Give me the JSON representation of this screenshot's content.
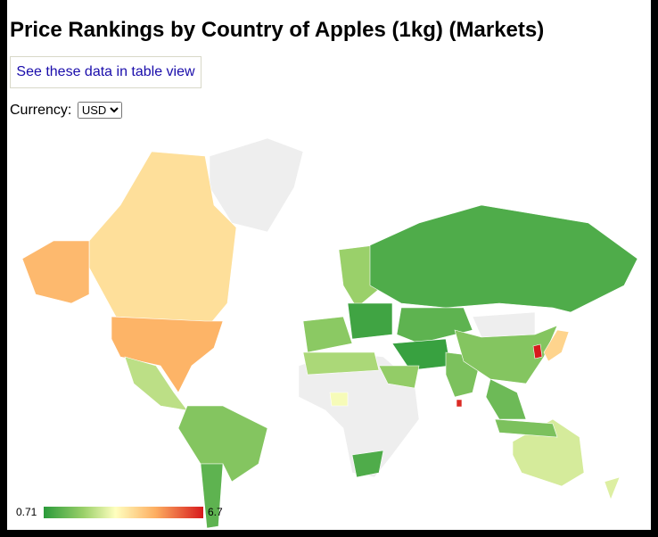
{
  "header": {
    "title": "Price Rankings by Country of Apples (1kg) (Markets)"
  },
  "table_link": "See these data in table view",
  "currency": {
    "label": "Currency:",
    "selected": "USD"
  },
  "map": {
    "legend": {
      "min": 0.71,
      "max": 6.7
    },
    "values": [
      4.0,
      4.7,
      4.8,
      2.6,
      1.9,
      1.4,
      3.3,
      1.2,
      2.4,
      2.0,
      2.2,
      1.0,
      1.2,
      1.4,
      0.9,
      2.1,
      1.8,
      1.9,
      1.6,
      6.7,
      4.2,
      6.5,
      2.9,
      3.0,
      1.8
    ]
  }
}
